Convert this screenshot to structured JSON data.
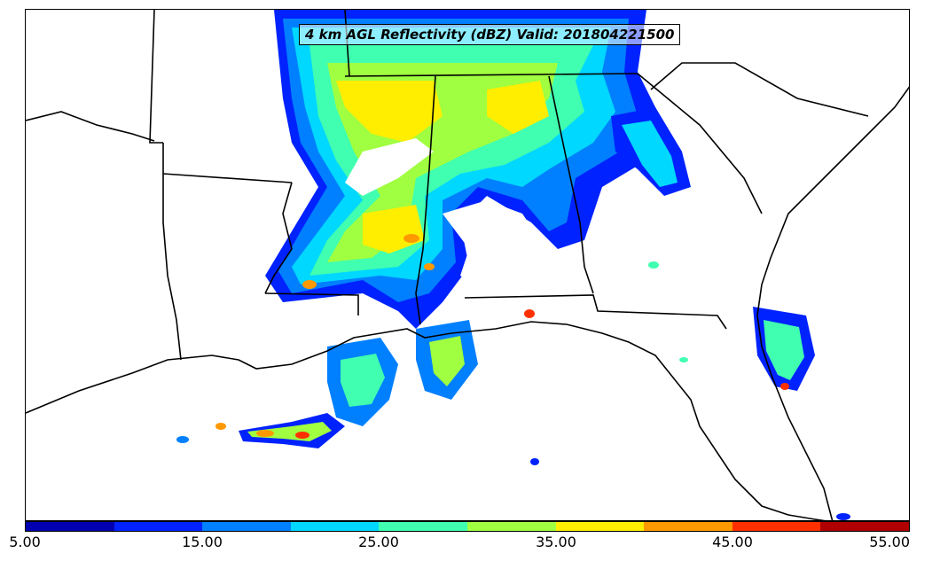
{
  "title": "4 km AGL Reflectivity (dBZ) Valid: 201804221500",
  "colorbar": {
    "colors": [
      "#0000b0",
      "#0022ff",
      "#0080ff",
      "#00d8ff",
      "#40ffb0",
      "#a0ff40",
      "#ffee00",
      "#ff9900",
      "#ff3000",
      "#b00000"
    ],
    "tick_labels": [
      "5.00",
      "15.00",
      "25.00",
      "35.00",
      "45.00",
      "55.00"
    ],
    "min": 5,
    "max": 55
  }
}
